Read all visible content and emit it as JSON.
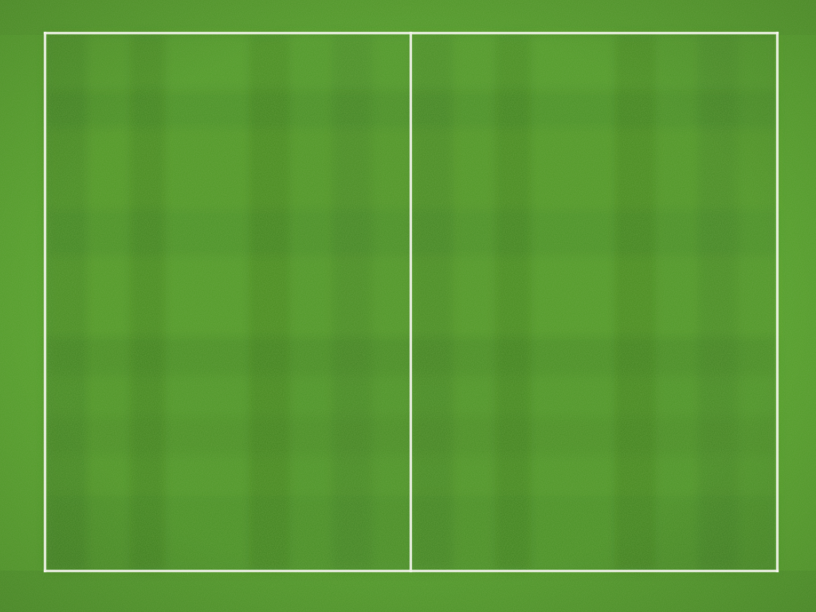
{
  "scene": {
    "name": "football-pitch-top-down",
    "colors": {
      "grass_base": "#4a8f24",
      "grass_light": "#5ca82e",
      "grass_dark": "#3c7a1c",
      "line": "#f2f4ea"
    },
    "pitch": {
      "field_markings": [
        "touchline-top",
        "touchline-bottom",
        "goal-line-left",
        "goal-line-right",
        "halfway-line"
      ]
    }
  }
}
